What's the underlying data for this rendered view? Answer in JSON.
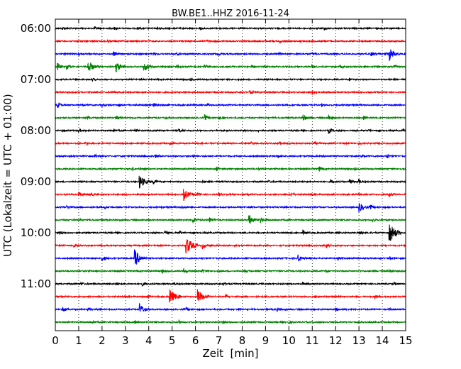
{
  "chart_data": {
    "type": "line",
    "title": "BW.BE1..HHZ 2016-11-24",
    "xlabel": "Zeit  [min]",
    "ylabel": "UTC (Lokalzeit = UTC + 01:00)",
    "xlim": [
      0,
      15
    ],
    "x_ticks": [
      0,
      1,
      2,
      3,
      4,
      5,
      6,
      7,
      8,
      9,
      10,
      11,
      12,
      13,
      14,
      15
    ],
    "y_tick_labels": [
      "06:00",
      "07:00",
      "08:00",
      "09:00",
      "10:00",
      "11:00"
    ],
    "trace_colors": [
      "#000000",
      "#ff0000",
      "#0000ff",
      "#008000"
    ],
    "minutes_per_trace": 15,
    "grid": "vertical dotted",
    "traces": [
      {
        "start": "06:00",
        "events": [
          [
            0.3,
            2
          ],
          [
            1.7,
            2
          ],
          [
            2.5,
            2
          ],
          [
            3.5,
            2
          ],
          [
            4.4,
            2
          ],
          [
            6.2,
            1.5
          ],
          [
            11.5,
            2
          ]
        ]
      },
      {
        "start": "06:15",
        "events": [
          [
            2.2,
            1.5
          ],
          [
            6.5,
            1.5
          ],
          [
            9.6,
            1.5
          ]
        ]
      },
      {
        "start": "06:30",
        "events": [
          [
            1.0,
            2
          ],
          [
            2.5,
            3
          ],
          [
            4.2,
            2
          ],
          [
            5.2,
            2
          ],
          [
            7.0,
            1.5
          ],
          [
            9.6,
            2
          ],
          [
            11.0,
            2
          ],
          [
            13.5,
            3
          ],
          [
            14.1,
            3
          ],
          [
            14.3,
            9
          ]
        ]
      },
      {
        "start": "06:45",
        "events": [
          [
            0.1,
            5
          ],
          [
            0.5,
            3
          ],
          [
            1.4,
            9
          ],
          [
            2.6,
            8
          ],
          [
            3.8,
            7
          ],
          [
            5.2,
            3
          ],
          [
            6.4,
            3
          ],
          [
            8.4,
            3
          ],
          [
            11.0,
            2
          ],
          [
            12.2,
            2
          ],
          [
            14.5,
            2
          ]
        ]
      },
      {
        "start": "07:00",
        "events": [
          [
            1.6,
            1.5
          ],
          [
            5.8,
            1.5
          ],
          [
            12.6,
            1.5
          ]
        ]
      },
      {
        "start": "07:15",
        "events": [
          [
            2.4,
            2
          ],
          [
            8.3,
            3
          ],
          [
            11.0,
            3
          ]
        ]
      },
      {
        "start": "07:30",
        "events": [
          [
            0.1,
            4
          ],
          [
            2.0,
            2
          ],
          [
            2.7,
            2
          ],
          [
            4.2,
            3
          ],
          [
            6.5,
            2
          ],
          [
            11.4,
            2
          ]
        ]
      },
      {
        "start": "07:45",
        "events": [
          [
            1.4,
            2
          ],
          [
            2.6,
            3
          ],
          [
            4.7,
            2
          ],
          [
            6.4,
            4
          ],
          [
            7.0,
            2
          ],
          [
            10.6,
            5
          ],
          [
            11.7,
            4
          ],
          [
            13.2,
            3
          ]
        ]
      },
      {
        "start": "08:00",
        "events": [
          [
            0.3,
            2
          ],
          [
            1.0,
            2
          ],
          [
            2.5,
            2
          ],
          [
            3.4,
            2
          ],
          [
            5.3,
            3
          ],
          [
            8.7,
            2
          ],
          [
            11.7,
            4
          ],
          [
            13.4,
            2
          ],
          [
            14.9,
            2
          ]
        ]
      },
      {
        "start": "08:15",
        "events": [
          [
            1.3,
            2
          ],
          [
            4.9,
            2
          ],
          [
            8.4,
            2
          ],
          [
            9.6,
            2
          ],
          [
            11.1,
            2
          ],
          [
            13.0,
            2
          ]
        ]
      },
      {
        "start": "08:30",
        "events": [
          [
            1.7,
            2
          ],
          [
            4.3,
            2
          ],
          [
            5.9,
            2
          ],
          [
            9.5,
            2
          ],
          [
            13.1,
            2
          ],
          [
            14.2,
            3
          ]
        ]
      },
      {
        "start": "08:45",
        "events": [
          [
            3.3,
            2
          ],
          [
            6.9,
            3
          ],
          [
            8.7,
            2
          ],
          [
            11.3,
            3
          ],
          [
            12.8,
            2
          ]
        ]
      },
      {
        "start": "09:00",
        "events": [
          [
            3.6,
            10
          ],
          [
            4.2,
            3
          ],
          [
            6.3,
            2
          ],
          [
            9.1,
            2
          ],
          [
            11.8,
            3
          ],
          [
            12.6,
            4
          ],
          [
            13.0,
            3
          ]
        ]
      },
      {
        "start": "09:15",
        "events": [
          [
            1.0,
            3
          ],
          [
            1.5,
            3
          ],
          [
            5.5,
            8
          ],
          [
            6.1,
            2
          ],
          [
            7.0,
            2
          ],
          [
            10.1,
            2
          ],
          [
            14.3,
            3
          ]
        ]
      },
      {
        "start": "09:30",
        "events": [
          [
            0.5,
            2
          ],
          [
            2.1,
            2
          ],
          [
            5.4,
            2
          ],
          [
            13.0,
            7
          ],
          [
            13.5,
            3
          ]
        ]
      },
      {
        "start": "09:45",
        "events": [
          [
            1.0,
            2
          ],
          [
            5.9,
            4
          ],
          [
            6.6,
            4
          ],
          [
            8.3,
            7
          ],
          [
            8.8,
            4
          ],
          [
            13.6,
            2
          ]
        ]
      },
      {
        "start": "10:00",
        "events": [
          [
            0.2,
            2
          ],
          [
            4.7,
            3
          ],
          [
            5.3,
            3
          ],
          [
            10.6,
            3
          ],
          [
            13.0,
            3
          ],
          [
            14.3,
            14
          ]
        ]
      },
      {
        "start": "10:15",
        "events": [
          [
            0.8,
            2
          ],
          [
            5.6,
            13
          ],
          [
            6.3,
            4
          ],
          [
            11.6,
            4
          ]
        ]
      },
      {
        "start": "10:30",
        "events": [
          [
            2.0,
            4
          ],
          [
            3.4,
            12
          ],
          [
            10.4,
            5
          ],
          [
            12.1,
            2
          ],
          [
            14.3,
            2
          ]
        ]
      },
      {
        "start": "10:45",
        "events": [
          [
            4.6,
            3
          ],
          [
            5.5,
            3
          ],
          [
            6.3,
            2
          ],
          [
            8.1,
            2
          ],
          [
            11.6,
            2
          ],
          [
            14.3,
            2
          ]
        ]
      },
      {
        "start": "11:00",
        "events": [
          [
            1.1,
            2
          ],
          [
            2.6,
            2
          ],
          [
            3.7,
            3
          ],
          [
            5.1,
            2
          ],
          [
            7.2,
            2
          ],
          [
            10.6,
            2
          ],
          [
            14.5,
            2
          ]
        ]
      },
      {
        "start": "11:15",
        "events": [
          [
            4.0,
            2
          ],
          [
            4.9,
            11
          ],
          [
            6.1,
            10
          ],
          [
            7.3,
            2
          ],
          [
            11.1,
            2
          ],
          [
            13.7,
            2
          ]
        ]
      },
      {
        "start": "11:30",
        "events": [
          [
            0.3,
            4
          ],
          [
            1.4,
            2
          ],
          [
            3.6,
            8
          ],
          [
            5.6,
            3
          ],
          [
            7.8,
            2
          ],
          [
            9.5,
            2
          ],
          [
            12.0,
            2
          ],
          [
            14.3,
            2
          ]
        ]
      },
      {
        "start": "11:45",
        "events": [
          [
            1.6,
            2
          ],
          [
            3.4,
            2
          ],
          [
            5.3,
            2
          ],
          [
            7.2,
            2
          ],
          [
            10.0,
            2
          ]
        ]
      }
    ]
  }
}
